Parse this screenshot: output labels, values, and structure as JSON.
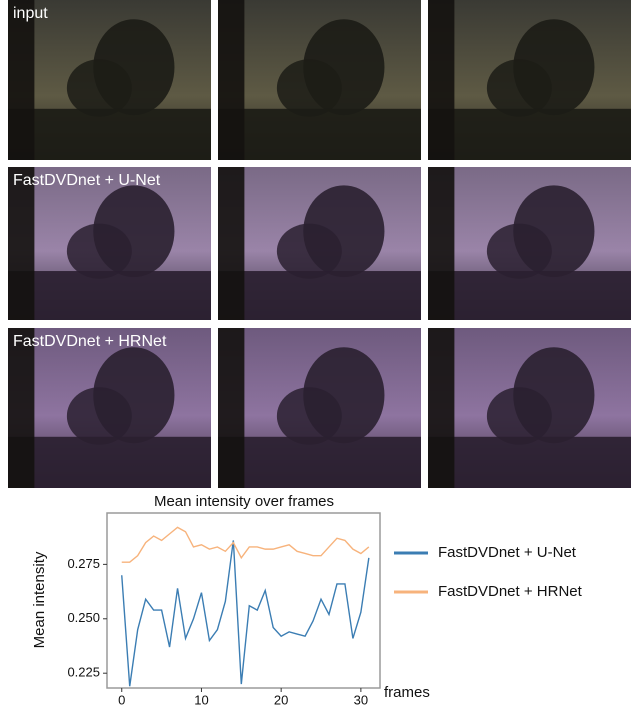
{
  "image_grid": {
    "row_labels": [
      "input",
      "FastDVDnet + U-Net",
      "FastDVDnet + HRNet"
    ]
  },
  "chart_data": {
    "type": "line",
    "title": "Mean intensity over frames",
    "x_label": "frames",
    "y_label": "Mean intensity",
    "x": [
      0,
      1,
      2,
      3,
      4,
      5,
      6,
      7,
      8,
      9,
      10,
      11,
      12,
      13,
      14,
      15,
      16,
      17,
      18,
      19,
      20,
      21,
      22,
      23,
      24,
      25,
      26,
      27,
      28,
      29,
      30,
      31
    ],
    "series": [
      {
        "name": "FastDVDnet + U-Net",
        "color": "#3b7db3",
        "values": [
          0.27,
          0.219,
          0.245,
          0.259,
          0.254,
          0.254,
          0.237,
          0.264,
          0.241,
          0.25,
          0.262,
          0.24,
          0.245,
          0.258,
          0.286,
          0.22,
          0.256,
          0.254,
          0.263,
          0.246,
          0.242,
          0.244,
          0.243,
          0.242,
          0.249,
          0.259,
          0.252,
          0.266,
          0.266,
          0.241,
          0.253,
          0.278
        ]
      },
      {
        "name": "FastDVDnet + HRNet",
        "color": "#f7b37c",
        "values": [
          0.276,
          0.276,
          0.279,
          0.285,
          0.288,
          0.286,
          0.289,
          0.292,
          0.29,
          0.283,
          0.284,
          0.282,
          0.283,
          0.281,
          0.285,
          0.278,
          0.283,
          0.283,
          0.282,
          0.282,
          0.283,
          0.284,
          0.281,
          0.28,
          0.279,
          0.279,
          0.283,
          0.287,
          0.286,
          0.282,
          0.28,
          0.283
        ]
      }
    ],
    "xlim": [
      -1.85,
      32.4
    ],
    "ylim": [
      0.2182,
      0.2986
    ],
    "xticks": [
      0,
      10,
      20,
      30
    ],
    "yticks": [
      0.225,
      {
        "value": 0.25,
        "label": "0.250"
      },
      0.275
    ],
    "grid": false
  }
}
